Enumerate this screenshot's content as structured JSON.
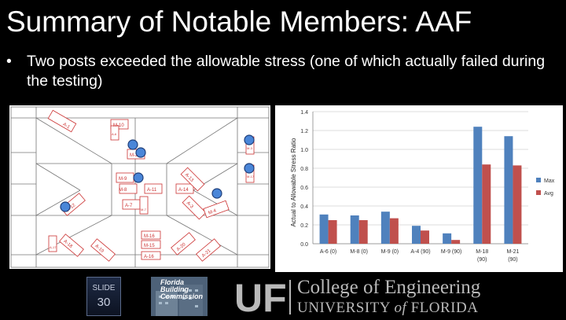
{
  "slide": {
    "title": "Summary of Notable Members: AAF",
    "bullet": "Two posts exceeded the allowable stress (one of which actually failed during the testing)",
    "slide_label": "SLIDE",
    "slide_number": "30"
  },
  "plan": {
    "labels": [
      "A-1",
      "M-10",
      "A-6",
      "M-2",
      "M-9",
      "M-8",
      "A-11",
      "A-14",
      "A-13",
      "A-12",
      "A-7",
      "M-7",
      "A-3",
      "M-4",
      "M-3",
      "M-17",
      "M-16",
      "M-15",
      "A-16",
      "A-19",
      "A-18",
      "A-21",
      "A-20",
      "A-17"
    ]
  },
  "chart_data": {
    "type": "bar",
    "categories": [
      "A-6 (0)",
      "M-8 (0)",
      "M-9 (0)",
      "A-4 (90)",
      "M-9 (90)",
      "M-18 (90)",
      "M-21 (90)"
    ],
    "category_lines": [
      [
        "A-6 (0)"
      ],
      [
        "M-8 (0)"
      ],
      [
        "M-9 (0)"
      ],
      [
        "A-4 (90)"
      ],
      [
        "M-9 (90)"
      ],
      [
        "M-18",
        "(90)"
      ],
      [
        "M-21",
        "(90)"
      ]
    ],
    "series": [
      {
        "name": "Max",
        "color": "#4f81bd",
        "values": [
          0.31,
          0.3,
          0.34,
          0.19,
          0.11,
          1.24,
          1.14
        ]
      },
      {
        "name": "Avg",
        "color": "#c0504d",
        "values": [
          0.25,
          0.25,
          0.27,
          0.14,
          0.04,
          0.84,
          0.83
        ]
      }
    ],
    "ylabel": "Actual to Allowable Stress Ratio",
    "ylim": [
      0,
      1.4
    ],
    "yticks": [
      "0.0",
      "0.2",
      "0.4",
      "0.6",
      "0.8",
      "1.0",
      "1.2",
      "1.4"
    ],
    "grid": true,
    "legend_position": "right"
  },
  "logos": {
    "fbc_lines": [
      "Florida",
      "Building",
      "Commission"
    ],
    "uf_mark": "UF",
    "college": "College of Engineering",
    "university_a": "UNIVERSITY ",
    "university_of": "of",
    "university_b": " FLORIDA"
  }
}
